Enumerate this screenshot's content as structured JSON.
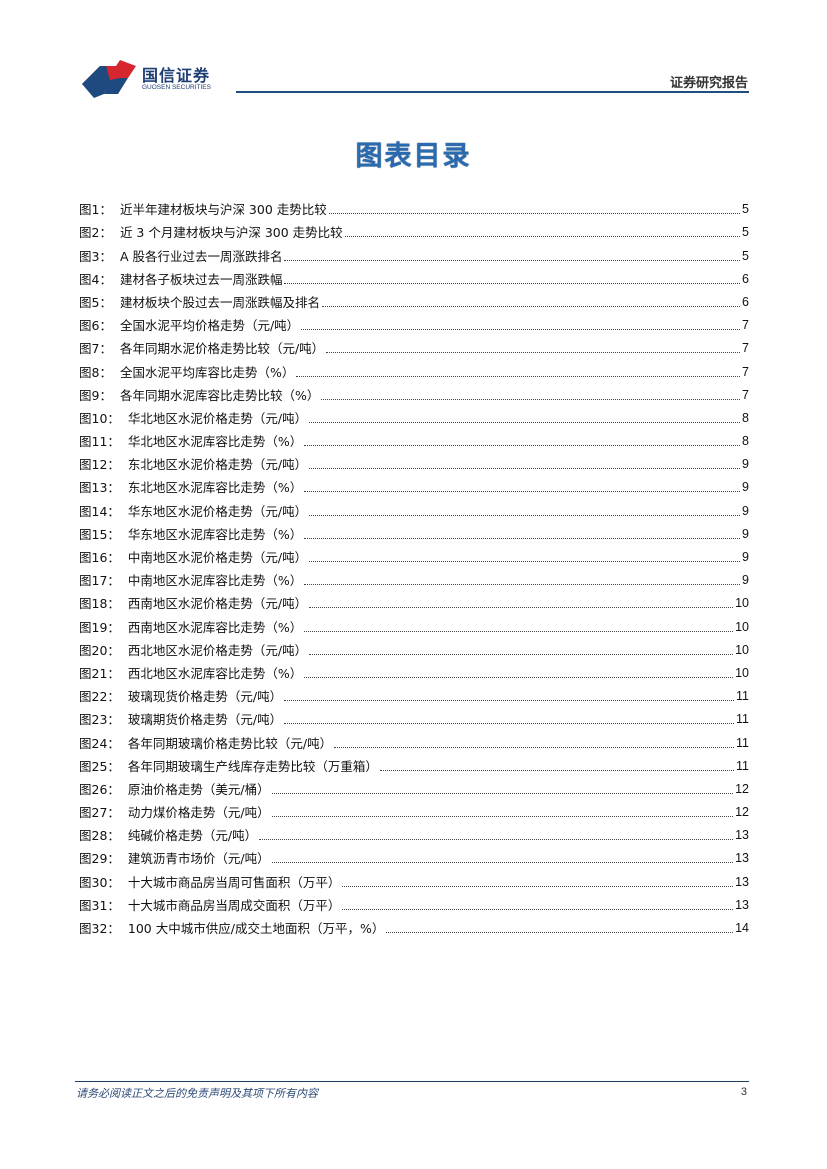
{
  "header": {
    "logo_cn": "国信证券",
    "logo_en": "GUOSEN SECURITIES",
    "report_type": "证券研究报告",
    "brand_colors": {
      "red": "#d6262e",
      "blue": "#1f3f73"
    }
  },
  "title": "图表目录",
  "entries": [
    {
      "num": "图1：",
      "text": "近半年建材板块与沪深 300 走势比较",
      "page": "5"
    },
    {
      "num": "图2：",
      "text": "近 3 个月建材板块与沪深 300 走势比较",
      "page": "5"
    },
    {
      "num": "图3：",
      "text": "A 股各行业过去一周涨跌排名",
      "page": "5"
    },
    {
      "num": "图4：",
      "text": "建材各子板块过去一周涨跌幅",
      "page": "6"
    },
    {
      "num": "图5：",
      "text": "建材板块个股过去一周涨跌幅及排名",
      "page": "6"
    },
    {
      "num": "图6：",
      "text": "全国水泥平均价格走势（元/吨）",
      "page": "7"
    },
    {
      "num": "图7：",
      "text": "各年同期水泥价格走势比较（元/吨）",
      "page": "7"
    },
    {
      "num": "图8：",
      "text": "全国水泥平均库容比走势（%）",
      "page": "7"
    },
    {
      "num": "图9：",
      "text": "各年同期水泥库容比走势比较（%）",
      "page": "7"
    },
    {
      "num": "图10：",
      "text": "华北地区水泥价格走势（元/吨）",
      "page": "8"
    },
    {
      "num": "图11：",
      "text": "华北地区水泥库容比走势（%）",
      "page": "8"
    },
    {
      "num": "图12：",
      "text": "东北地区水泥价格走势（元/吨）",
      "page": "9"
    },
    {
      "num": "图13：",
      "text": "东北地区水泥库容比走势（%）",
      "page": "9"
    },
    {
      "num": "图14：",
      "text": "华东地区水泥价格走势（元/吨）",
      "page": "9"
    },
    {
      "num": "图15：",
      "text": "华东地区水泥库容比走势（%）",
      "page": "9"
    },
    {
      "num": "图16：",
      "text": "中南地区水泥价格走势（元/吨）",
      "page": "9"
    },
    {
      "num": "图17：",
      "text": "中南地区水泥库容比走势（%）",
      "page": "9"
    },
    {
      "num": "图18：",
      "text": "西南地区水泥价格走势（元/吨）",
      "page": "10"
    },
    {
      "num": "图19：",
      "text": "西南地区水泥库容比走势（%）",
      "page": "10"
    },
    {
      "num": "图20：",
      "text": "西北地区水泥价格走势（元/吨）",
      "page": "10"
    },
    {
      "num": "图21：",
      "text": "西北地区水泥库容比走势（%）",
      "page": "10"
    },
    {
      "num": "图22：",
      "text": "玻璃现货价格走势（元/吨）",
      "page": "11"
    },
    {
      "num": "图23：",
      "text": "玻璃期货价格走势（元/吨）",
      "page": "11"
    },
    {
      "num": "图24：",
      "text": "各年同期玻璃价格走势比较（元/吨）",
      "page": "11"
    },
    {
      "num": "图25：",
      "text": "各年同期玻璃生产线库存走势比较（万重箱）",
      "page": "11"
    },
    {
      "num": "图26：",
      "text": "原油价格走势（美元/桶）",
      "page": "12"
    },
    {
      "num": "图27：",
      "text": "动力煤价格走势（元/吨）",
      "page": "12"
    },
    {
      "num": "图28：",
      "text": "纯碱价格走势（元/吨）",
      "page": "13"
    },
    {
      "num": "图29：",
      "text": "建筑沥青市场价（元/吨）",
      "page": "13"
    },
    {
      "num": "图30：",
      "text": "十大城市商品房当周可售面积（万平）",
      "page": "13"
    },
    {
      "num": "图31：",
      "text": "十大城市商品房当周成交面积（万平）",
      "page": "13"
    },
    {
      "num": "图32：",
      "text": "100 大中城市供应/成交土地面积（万平，%）",
      "page": "14"
    }
  ],
  "footer": {
    "disclaimer": "请务必阅读正文之后的免责声明及其项下所有内容",
    "page_number": "3"
  }
}
